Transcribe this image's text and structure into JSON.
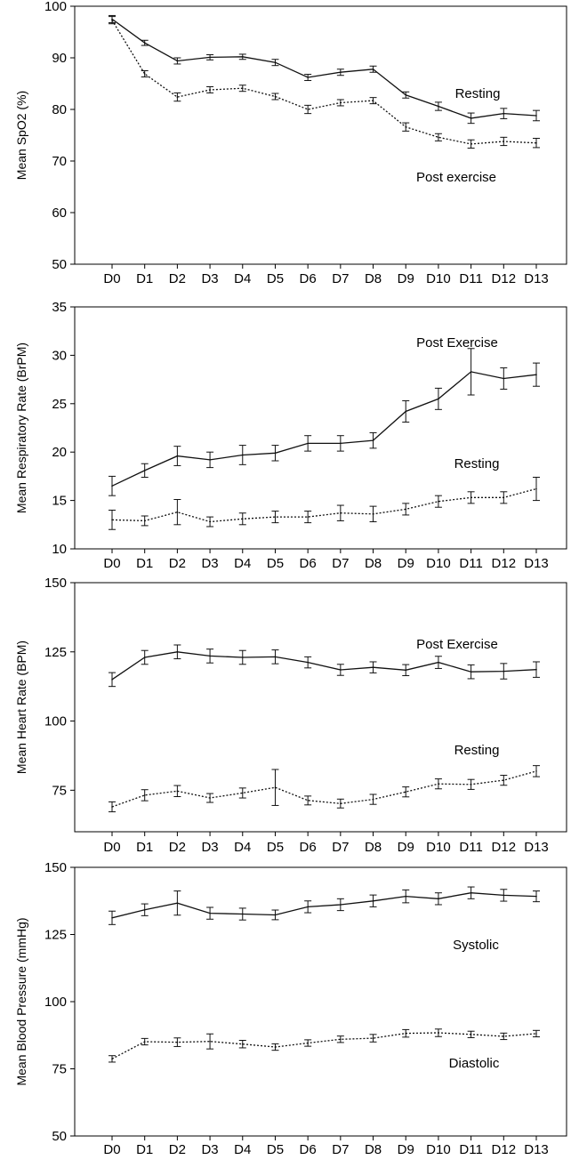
{
  "chart_data": [
    {
      "type": "line",
      "title": "",
      "xlabel": "",
      "ylabel": "Mean SpO2 (%)",
      "categories": [
        "D0",
        "D1",
        "D2",
        "D3",
        "D4",
        "D5",
        "D6",
        "D7",
        "D8",
        "D9",
        "D10",
        "D11",
        "D12",
        "D13"
      ],
      "ylim": [
        50,
        100
      ],
      "yticks": [
        50,
        60,
        70,
        80,
        90,
        100
      ],
      "series": [
        {
          "name": "Resting",
          "line_style": "solid",
          "values": [
            97.5,
            92.9,
            89.4,
            90.1,
            90.2,
            89.1,
            86.2,
            87.2,
            87.8,
            82.8,
            80.6,
            78.3,
            79.2,
            78.8
          ],
          "error": [
            0.7,
            0.5,
            0.6,
            0.5,
            0.5,
            0.6,
            0.6,
            0.6,
            0.6,
            0.6,
            0.8,
            1.0,
            1.0,
            1.0
          ]
        },
        {
          "name": "Post exercise",
          "line_style": "dotted",
          "values": [
            97.3,
            86.9,
            82.4,
            83.8,
            84.1,
            82.5,
            80.0,
            81.3,
            81.7,
            76.6,
            74.6,
            73.3,
            73.8,
            73.5
          ],
          "error": [
            0.7,
            0.6,
            0.8,
            0.6,
            0.6,
            0.6,
            0.8,
            0.6,
            0.6,
            0.8,
            0.7,
            0.8,
            0.8,
            0.9
          ]
        }
      ],
      "annotations": [
        {
          "text": "Resting",
          "series": "Resting"
        },
        {
          "text": "Post exercise",
          "series": "Post exercise"
        }
      ]
    },
    {
      "type": "line",
      "title": "",
      "xlabel": "",
      "ylabel": "Mean Respiratory Rate (BrPM)",
      "categories": [
        "D0",
        "D1",
        "D2",
        "D3",
        "D4",
        "D5",
        "D6",
        "D7",
        "D8",
        "D9",
        "D10",
        "D11",
        "D12",
        "D13"
      ],
      "ylim": [
        10,
        35
      ],
      "yticks": [
        10,
        15,
        20,
        25,
        30,
        35
      ],
      "series": [
        {
          "name": "Post Exercise",
          "line_style": "solid",
          "values": [
            16.5,
            18.1,
            19.6,
            19.2,
            19.7,
            19.9,
            20.9,
            20.9,
            21.2,
            24.2,
            25.5,
            28.3,
            27.6,
            28.0
          ],
          "error": [
            1.0,
            0.7,
            1.0,
            0.8,
            1.0,
            0.8,
            0.8,
            0.8,
            0.8,
            1.1,
            1.1,
            2.4,
            1.1,
            1.2
          ]
        },
        {
          "name": "Resting",
          "line_style": "dotted",
          "values": [
            13.0,
            12.9,
            13.8,
            12.8,
            13.1,
            13.3,
            13.3,
            13.7,
            13.6,
            14.1,
            14.9,
            15.3,
            15.3,
            16.2
          ],
          "error": [
            1.0,
            0.5,
            1.3,
            0.5,
            0.6,
            0.6,
            0.6,
            0.8,
            0.8,
            0.6,
            0.6,
            0.6,
            0.6,
            1.2
          ]
        }
      ],
      "annotations": [
        {
          "text": "Post Exercise",
          "series": "Post Exercise"
        },
        {
          "text": "Resting",
          "series": "Resting"
        }
      ]
    },
    {
      "type": "line",
      "title": "",
      "xlabel": "",
      "ylabel": "Mean Heart Rate (BPM)",
      "categories": [
        "D0",
        "D1",
        "D2",
        "D3",
        "D4",
        "D5",
        "D6",
        "D7",
        "D8",
        "D9",
        "D10",
        "D11",
        "D12",
        "D13"
      ],
      "ylim": [
        60,
        150
      ],
      "yticks": [
        75,
        100,
        125,
        150
      ],
      "series": [
        {
          "name": "Post Exercise",
          "line_style": "solid",
          "values": [
            115,
            123,
            125,
            123.5,
            123,
            123.2,
            121.2,
            118.5,
            119.4,
            118.4,
            121.2,
            117.8,
            118,
            118.6
          ],
          "error": [
            2.5,
            2.5,
            2.5,
            2.5,
            2.5,
            2.5,
            2.0,
            2.0,
            2.0,
            2.0,
            2.2,
            2.5,
            2.8,
            2.8
          ]
        },
        {
          "name": "Resting",
          "line_style": "dotted",
          "values": [
            69,
            73.2,
            74.7,
            72.2,
            74,
            76,
            71.3,
            70.2,
            71.7,
            74.4,
            77.3,
            77.1,
            78.6,
            81.9
          ],
          "error": [
            1.8,
            2.0,
            2.0,
            1.6,
            1.8,
            6.5,
            1.6,
            1.6,
            1.8,
            1.8,
            1.8,
            1.8,
            1.8,
            2.0
          ]
        }
      ],
      "annotations": [
        {
          "text": "Post Exercise",
          "series": "Post Exercise"
        },
        {
          "text": "Resting",
          "series": "Resting"
        }
      ]
    },
    {
      "type": "line",
      "title": "",
      "xlabel": "",
      "ylabel": "Mean Blood Pressure (mmHg)",
      "categories": [
        "D0",
        "D1",
        "D2",
        "D3",
        "D4",
        "D5",
        "D6",
        "D7",
        "D8",
        "D9",
        "D10",
        "D11",
        "D12",
        "D13"
      ],
      "ylim": [
        50,
        150
      ],
      "yticks": [
        50,
        75,
        100,
        125,
        150
      ],
      "series": [
        {
          "name": "Systolic",
          "line_style": "solid",
          "values": [
            131.2,
            134.2,
            136.7,
            132.9,
            132.6,
            132.3,
            135.3,
            136.1,
            137.5,
            139.2,
            138.3,
            140.5,
            139.6,
            139.2
          ],
          "error": [
            2.5,
            2.2,
            4.5,
            2.2,
            2.2,
            1.8,
            2.2,
            2.2,
            2.2,
            2.4,
            2.2,
            2.2,
            2.2,
            2.0
          ]
        },
        {
          "name": "Diastolic",
          "line_style": "dotted",
          "values": [
            78.7,
            85.1,
            84.9,
            85.2,
            84.2,
            83.1,
            84.6,
            86.0,
            86.4,
            88.2,
            88.4,
            87.8,
            87.1,
            88.1
          ],
          "error": [
            1.2,
            1.2,
            1.6,
            2.8,
            1.4,
            1.2,
            1.2,
            1.2,
            1.4,
            1.4,
            1.4,
            1.2,
            1.2,
            1.2
          ]
        }
      ],
      "annotations": [
        {
          "text": "Systolic",
          "series": "Systolic"
        },
        {
          "text": "Diastolic",
          "series": "Diastolic"
        }
      ]
    }
  ]
}
